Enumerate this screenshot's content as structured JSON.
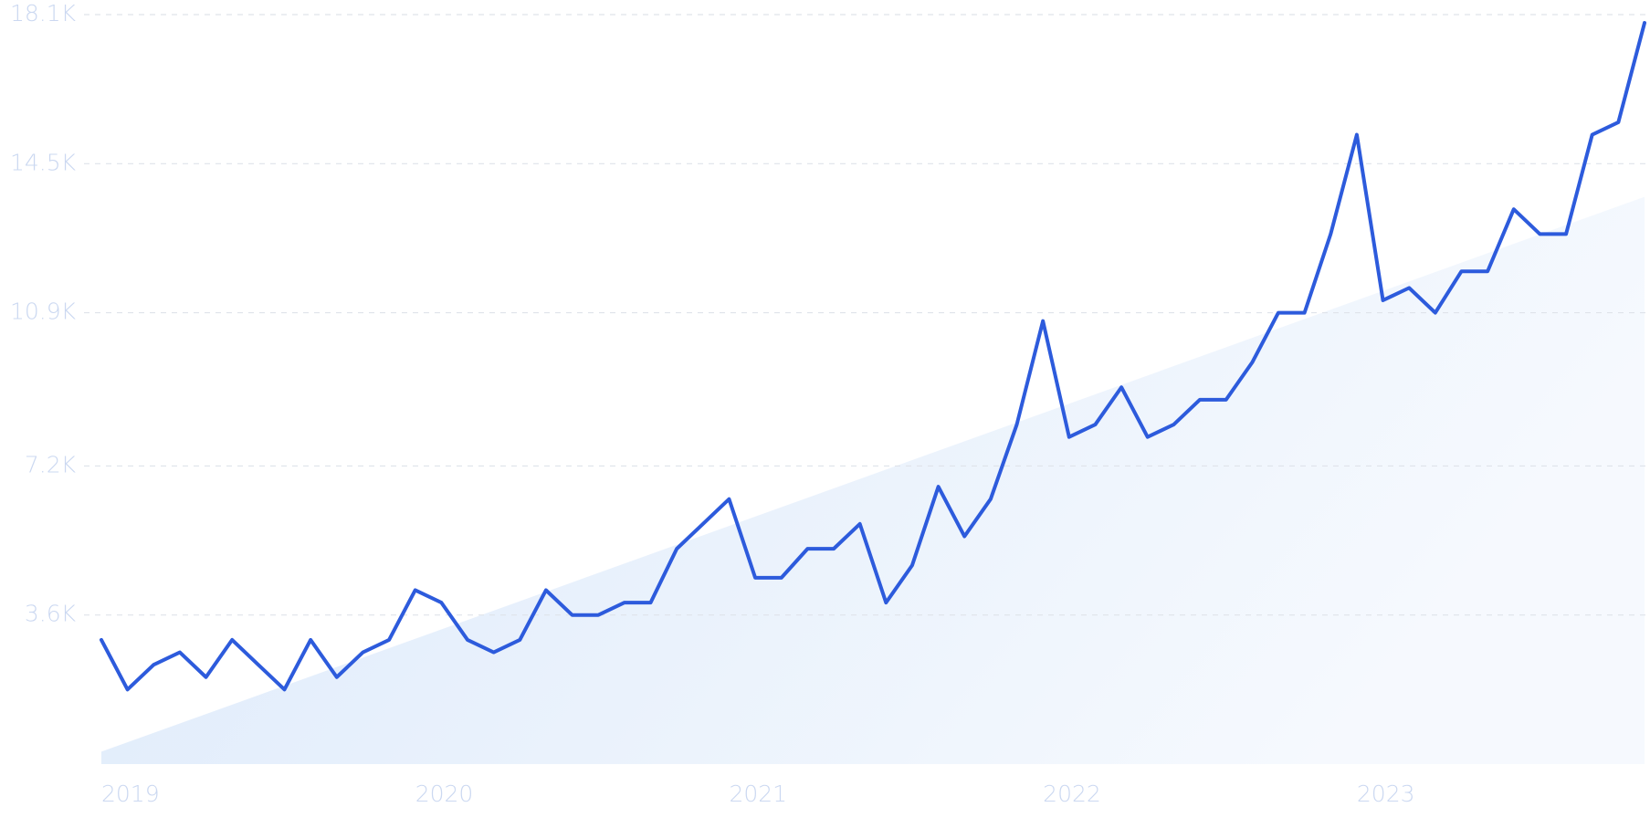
{
  "chart_data": {
    "type": "line",
    "categories": [
      "2019",
      null,
      null,
      null,
      null,
      null,
      null,
      null,
      null,
      null,
      null,
      null,
      "2020",
      null,
      null,
      null,
      null,
      null,
      null,
      null,
      null,
      null,
      null,
      null,
      "2021",
      null,
      null,
      null,
      null,
      null,
      null,
      null,
      null,
      null,
      null,
      null,
      "2022",
      null,
      null,
      null,
      null,
      null,
      null,
      null,
      null,
      null,
      null,
      null,
      "2023",
      null,
      null,
      null,
      null,
      null,
      null,
      null,
      null,
      null,
      null,
      null
    ],
    "series": [
      {
        "color": "#2d5bdc",
        "values": [
          3000,
          1800,
          2400,
          2700,
          2100,
          3000,
          2400,
          1800,
          3000,
          2100,
          2700,
          3000,
          4200,
          3900,
          3000,
          2700,
          3000,
          4200,
          3600,
          3600,
          3900,
          3900,
          5200,
          5800,
          6400,
          4500,
          4500,
          5200,
          5200,
          5800,
          3900,
          4800,
          6700,
          5500,
          6400,
          8200,
          10700,
          7900,
          8200,
          9100,
          7900,
          8200,
          8800,
          8800,
          9700,
          10900,
          10900,
          12800,
          15200,
          11200,
          11500,
          10900,
          11900,
          11900,
          13400,
          12800,
          12800,
          15200,
          15500,
          17900
        ]
      }
    ],
    "trend": {
      "color": "#dae8fa",
      "values": [
        300,
        13700
      ]
    },
    "ylim": [
      0,
      18100
    ],
    "yticks": [
      {
        "value": 3600,
        "label": "3.6K"
      },
      {
        "value": 7200,
        "label": "7.2K"
      },
      {
        "value": 10900,
        "label": "10.9K"
      },
      {
        "value": 14500,
        "label": "14.5K"
      },
      {
        "value": 18100,
        "label": "18.1K"
      }
    ],
    "grid": true
  }
}
